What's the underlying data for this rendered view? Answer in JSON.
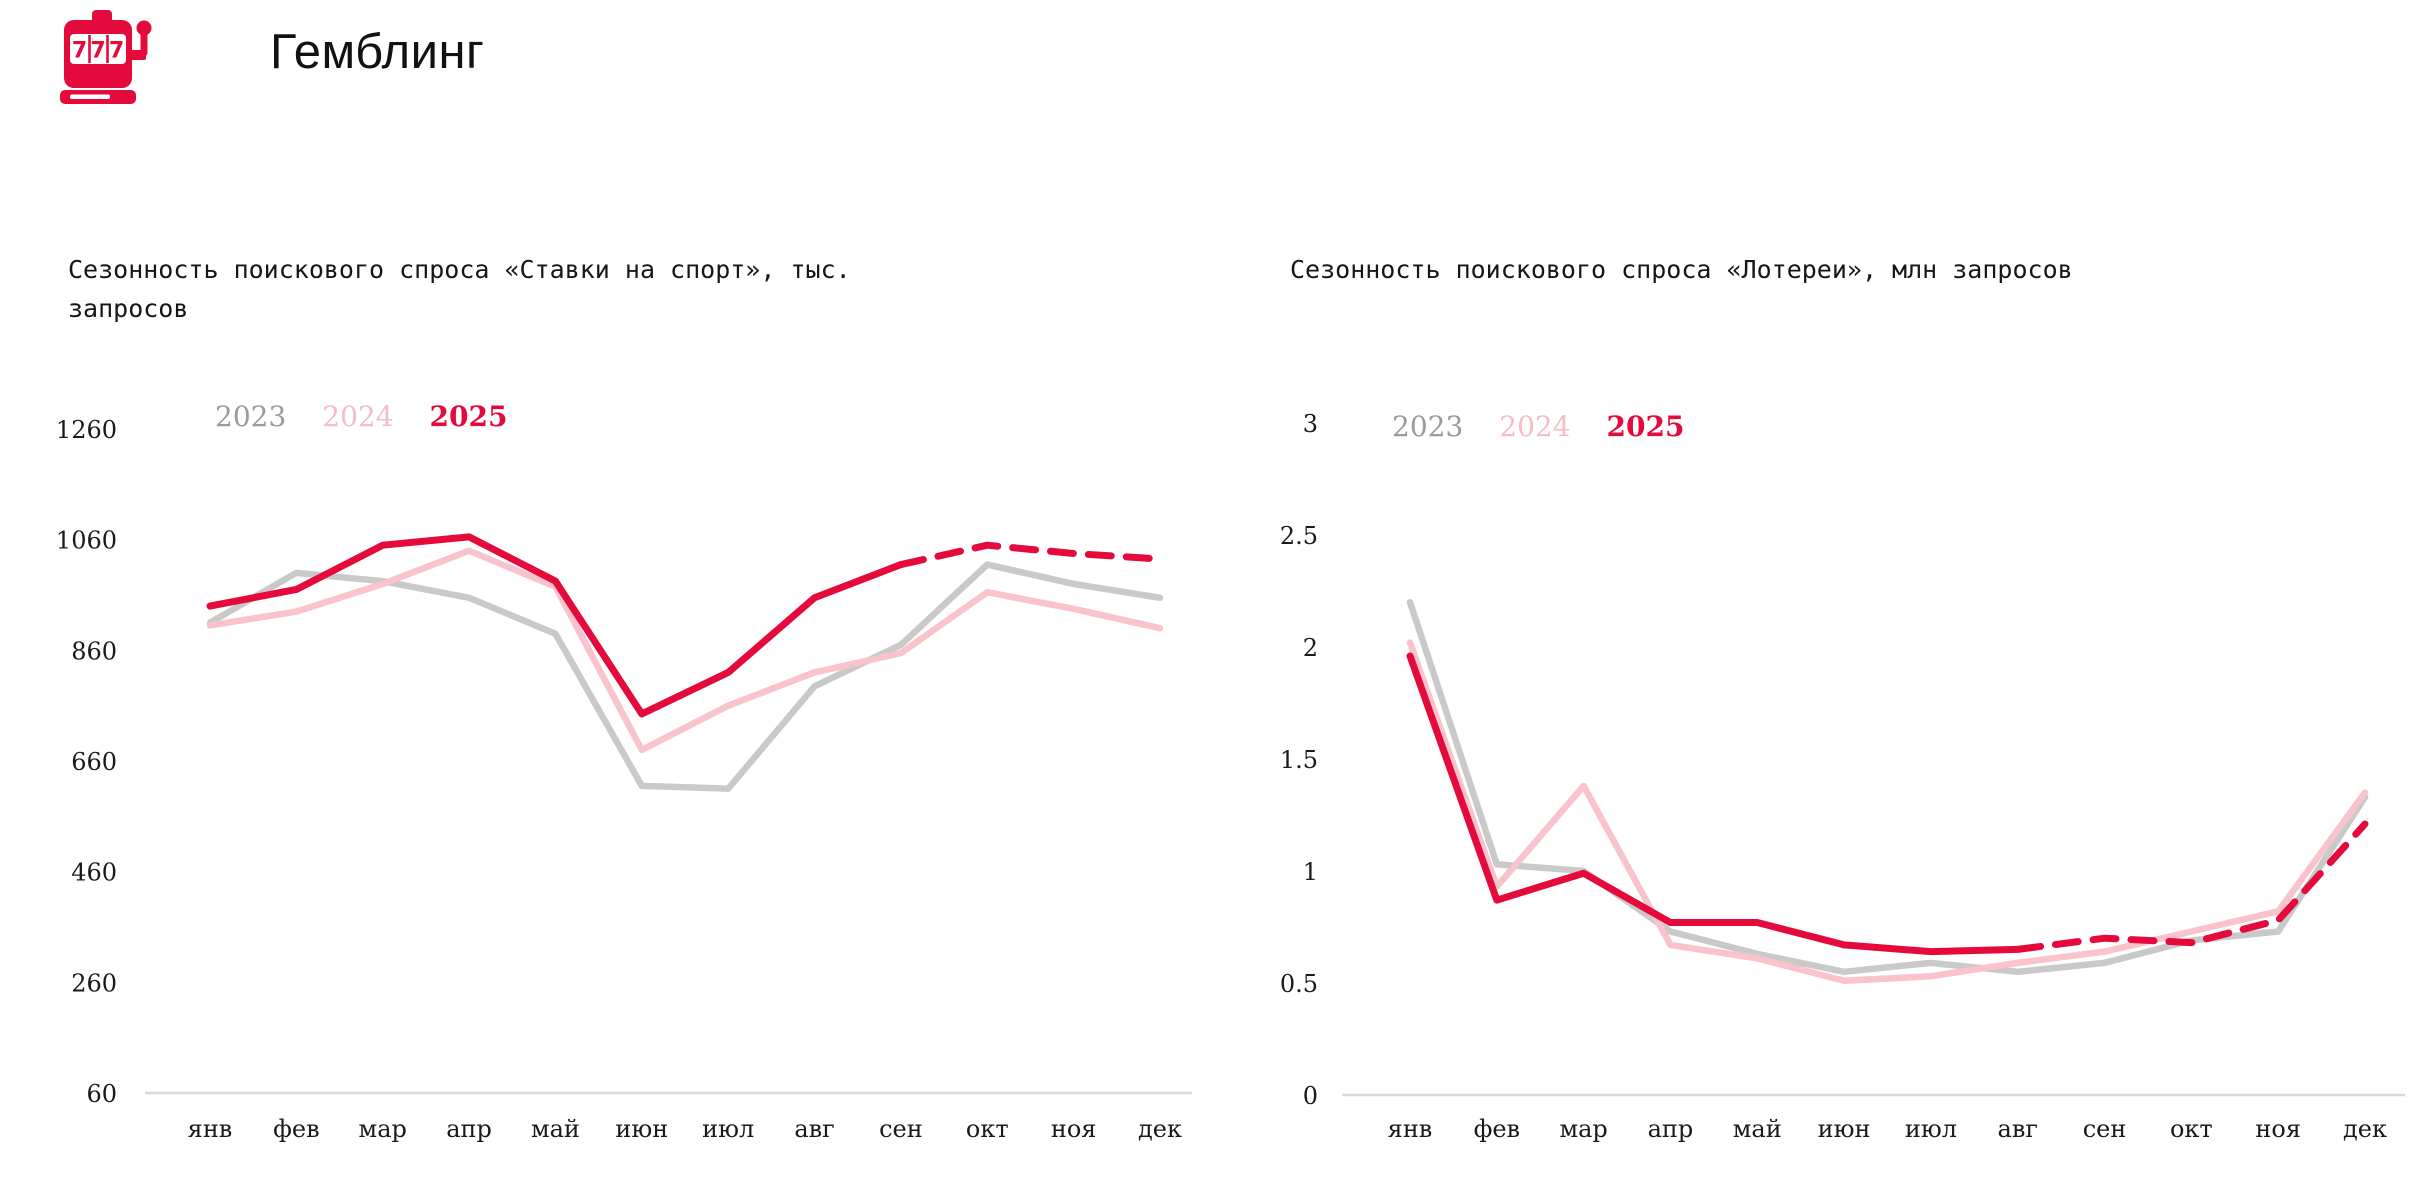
{
  "header": {
    "title": "Гемблинг",
    "icon": "slot-machine-icon",
    "icon_text": "777",
    "accent_color": "#e40b3c"
  },
  "colors": {
    "red": "#e40b3c",
    "pink": "#f8c3cd",
    "gray": "#c9c9c9",
    "legend_gray": "#9b9b9b",
    "axis_line": "#d9d9d9",
    "text": "#1a1a1a"
  },
  "chart_data": [
    {
      "type": "line",
      "title": "Сезонность поискового спроса «Ставки на спорт», тыс. запросов",
      "unit": "тыс. запросов",
      "categories": [
        "янв",
        "фев",
        "мар",
        "апр",
        "май",
        "июн",
        "июл",
        "авг",
        "сен",
        "окт",
        "ноя",
        "дек"
      ],
      "series": [
        {
          "name": "2023",
          "color": "#c9c9c9",
          "values": [
            910,
            1000,
            985,
            955,
            890,
            615,
            610,
            795,
            870,
            1015,
            980,
            955
          ]
        },
        {
          "name": "2024",
          "color": "#f8c3cd",
          "values": [
            905,
            930,
            980,
            1040,
            975,
            680,
            760,
            820,
            855,
            965,
            935,
            900
          ]
        },
        {
          "name": "2025",
          "color": "#e40b3c",
          "values": [
            940,
            970,
            1050,
            1065,
            985,
            745,
            820,
            955,
            1015,
            1050,
            1035,
            1025
          ],
          "dashed_from_index": 8,
          "dashed_segment": "сен–дек"
        }
      ],
      "legend": [
        {
          "label": "2023",
          "color": "#9b9b9b"
        },
        {
          "label": "2024",
          "color": "#f6bcc9"
        },
        {
          "label": "2025",
          "color": "#e30b3c"
        }
      ],
      "ylim": [
        60,
        1260
      ],
      "yticks": [
        {
          "value": 1260,
          "label": "1260"
        },
        {
          "value": 1060,
          "label": "1060"
        },
        {
          "value": 860,
          "label": "860"
        },
        {
          "value": 660,
          "label": "660"
        },
        {
          "value": 460,
          "label": "460"
        },
        {
          "value": 260,
          "label": "260"
        },
        {
          "value": 60,
          "label": "60"
        }
      ],
      "legend_position": "top-left",
      "grid": false
    },
    {
      "type": "line",
      "title": "Сезонность поискового спроса «Лотереи», млн запросов",
      "unit": "млн запросов",
      "categories": [
        "янв",
        "фев",
        "мар",
        "апр",
        "май",
        "июн",
        "июл",
        "авг",
        "сен",
        "окт",
        "ноя",
        "дек"
      ],
      "series": [
        {
          "name": "2023",
          "color": "#c9c9c9",
          "values": [
            2.2,
            1.03,
            1.0,
            0.73,
            0.63,
            0.55,
            0.59,
            0.55,
            0.59,
            0.69,
            0.73,
            1.33
          ]
        },
        {
          "name": "2024",
          "color": "#f8c3cd",
          "values": [
            2.02,
            0.93,
            1.38,
            0.67,
            0.61,
            0.51,
            0.53,
            0.59,
            0.64,
            0.73,
            0.82,
            1.35
          ]
        },
        {
          "name": "2025",
          "color": "#e40b3c",
          "values": [
            1.96,
            0.87,
            0.99,
            0.77,
            0.77,
            0.67,
            0.64,
            0.65,
            0.7,
            0.68,
            0.78,
            1.21
          ],
          "dashed_from_index": 7,
          "dashed_segment": "авг–дек"
        }
      ],
      "legend": [
        {
          "label": "2023",
          "color": "#9b9b9b"
        },
        {
          "label": "2024",
          "color": "#f6bcc9"
        },
        {
          "label": "2025",
          "color": "#e30b3c"
        }
      ],
      "ylim": [
        0,
        3
      ],
      "yticks": [
        {
          "value": 3,
          "label": "3"
        },
        {
          "value": 2.5,
          "label": "2.5"
        },
        {
          "value": 2,
          "label": "2"
        },
        {
          "value": 1.5,
          "label": "1.5"
        },
        {
          "value": 1,
          "label": "1"
        },
        {
          "value": 0.5,
          "label": "0.5"
        },
        {
          "value": 0,
          "label": "0"
        }
      ],
      "legend_position": "top-left",
      "grid": false
    }
  ]
}
